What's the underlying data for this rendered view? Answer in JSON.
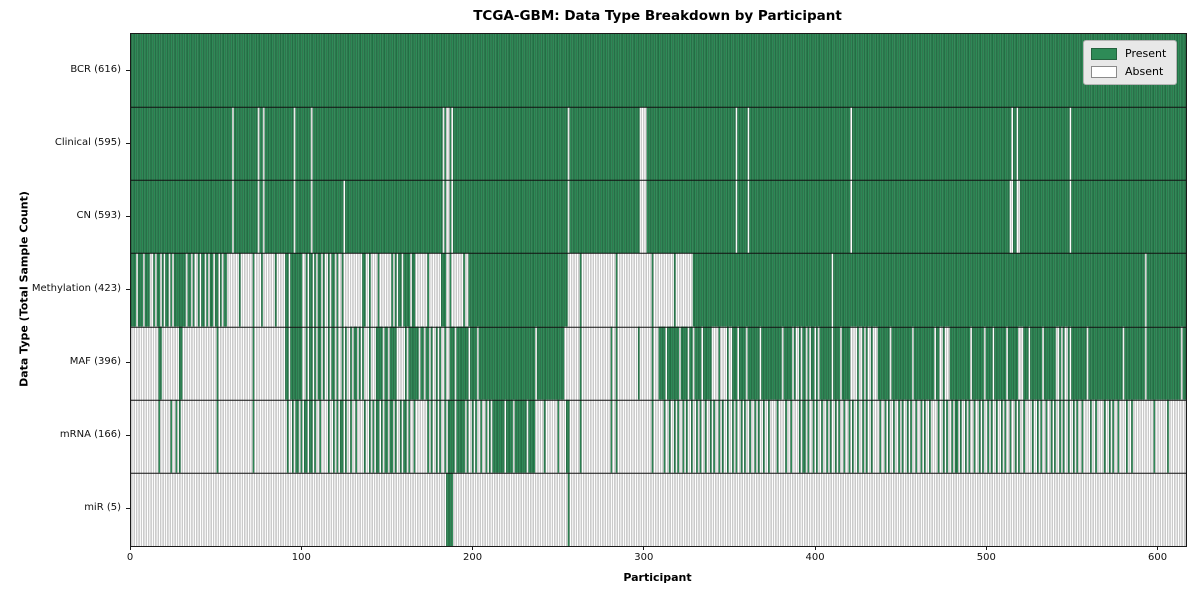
{
  "chart_data": {
    "type": "heatmap",
    "title": "TCGA-GBM: Data Type Breakdown by Participant",
    "xlabel": "Participant",
    "ylabel": "Data Type (Total Sample Count)",
    "x_ticks": [
      0,
      100,
      200,
      300,
      400,
      500,
      600
    ],
    "xlim": [
      0,
      616
    ],
    "n_participants": 616,
    "grid": false,
    "legend_position": "upper right",
    "legend_items": [
      {
        "label": "Present",
        "color": "#2e8b57"
      },
      {
        "label": "Absent",
        "color": "#ffffff"
      }
    ],
    "colors": {
      "present": "#2e8b57",
      "absent": "#ffffff",
      "bar_edge": "rgba(0,0,0,0.42)",
      "row_divider": "#111111",
      "axis": "#1a1a1a"
    },
    "segment_format": "[start_participant, end_participant, fraction_present] estimated from pixels",
    "rows": [
      {
        "label": "BCR (616)",
        "data_type": "BCR",
        "total_samples": 616,
        "segments": [
          [
            0,
            616,
            1
          ]
        ]
      },
      {
        "label": "Clinical (595)",
        "data_type": "Clinical",
        "total_samples": 595,
        "segments": [
          [
            0,
            59,
            1
          ],
          [
            59,
            60,
            0
          ],
          [
            60,
            74,
            1
          ],
          [
            74,
            75,
            0
          ],
          [
            75,
            77,
            1
          ],
          [
            77,
            78,
            0
          ],
          [
            78,
            95,
            1
          ],
          [
            95,
            96,
            0
          ],
          [
            96,
            105,
            1
          ],
          [
            105,
            106,
            0
          ],
          [
            106,
            182,
            1
          ],
          [
            182,
            188,
            0.25
          ],
          [
            188,
            255,
            1
          ],
          [
            255,
            256,
            0
          ],
          [
            256,
            297,
            1
          ],
          [
            297,
            301,
            0.25
          ],
          [
            301,
            353,
            1
          ],
          [
            353,
            354,
            0
          ],
          [
            354,
            360,
            1
          ],
          [
            360,
            361,
            0
          ],
          [
            361,
            420,
            1
          ],
          [
            420,
            421,
            0
          ],
          [
            421,
            514,
            1
          ],
          [
            514,
            515,
            0
          ],
          [
            515,
            517,
            1
          ],
          [
            517,
            518,
            0
          ],
          [
            518,
            548,
            1
          ],
          [
            548,
            549,
            0
          ],
          [
            549,
            616,
            1
          ]
        ]
      },
      {
        "label": "CN (593)",
        "data_type": "CN",
        "total_samples": 593,
        "segments": [
          [
            0,
            59,
            1
          ],
          [
            59,
            60,
            0
          ],
          [
            60,
            74,
            1
          ],
          [
            74,
            75,
            0
          ],
          [
            75,
            77,
            1
          ],
          [
            77,
            78,
            0
          ],
          [
            78,
            95,
            1
          ],
          [
            95,
            96,
            0
          ],
          [
            96,
            105,
            1
          ],
          [
            105,
            106,
            0
          ],
          [
            106,
            124,
            1
          ],
          [
            124,
            125,
            0
          ],
          [
            125,
            182,
            1
          ],
          [
            182,
            188,
            0.25
          ],
          [
            188,
            255,
            1
          ],
          [
            255,
            256,
            0
          ],
          [
            256,
            296,
            1
          ],
          [
            296,
            301,
            0.2
          ],
          [
            301,
            353,
            1
          ],
          [
            353,
            354,
            0
          ],
          [
            354,
            360,
            1
          ],
          [
            360,
            361,
            0
          ],
          [
            361,
            420,
            1
          ],
          [
            420,
            421,
            0
          ],
          [
            421,
            513,
            1
          ],
          [
            513,
            515,
            0
          ],
          [
            515,
            517,
            1
          ],
          [
            517,
            519,
            0
          ],
          [
            519,
            548,
            1
          ],
          [
            548,
            549,
            0
          ],
          [
            549,
            616,
            1
          ]
        ]
      },
      {
        "label": "Methylation (423)",
        "data_type": "Methylation",
        "total_samples": 423,
        "segments": [
          [
            0,
            3,
            1
          ],
          [
            3,
            4,
            0
          ],
          [
            4,
            7,
            1
          ],
          [
            7,
            8,
            0
          ],
          [
            8,
            11,
            1
          ],
          [
            11,
            25,
            0.5
          ],
          [
            25,
            31,
            1
          ],
          [
            31,
            56,
            0.6
          ],
          [
            56,
            90,
            0.12
          ],
          [
            90,
            101,
            0.92
          ],
          [
            101,
            125,
            0.5
          ],
          [
            125,
            135,
            0.05
          ],
          [
            135,
            137,
            1
          ],
          [
            137,
            154,
            0.15
          ],
          [
            154,
            165,
            0.75
          ],
          [
            165,
            181,
            0.1
          ],
          [
            181,
            184,
            1
          ],
          [
            184,
            197,
            0.15
          ],
          [
            197,
            255,
            0.98
          ],
          [
            255,
            310,
            0.06
          ],
          [
            310,
            328,
            0.12
          ],
          [
            328,
            409,
            1
          ],
          [
            409,
            410,
            0
          ],
          [
            410,
            616,
            0.995
          ]
        ]
      },
      {
        "label": "MAF (396)",
        "data_type": "MAF",
        "total_samples": 396,
        "segments": [
          [
            0,
            17,
            0.06
          ],
          [
            17,
            18,
            1
          ],
          [
            18,
            27,
            0.08
          ],
          [
            27,
            30,
            0.6
          ],
          [
            30,
            56,
            0.05
          ],
          [
            56,
            90,
            0.03
          ],
          [
            90,
            101,
            0.9
          ],
          [
            101,
            125,
            0.5
          ],
          [
            125,
            136,
            0.6
          ],
          [
            136,
            142,
            0.12
          ],
          [
            142,
            156,
            0.8
          ],
          [
            156,
            162,
            0.12
          ],
          [
            162,
            171,
            0.95
          ],
          [
            171,
            187,
            0.45
          ],
          [
            187,
            204,
            0.8
          ],
          [
            204,
            253,
            0.95
          ],
          [
            253,
            280,
            0.08
          ],
          [
            280,
            281,
            1
          ],
          [
            281,
            308,
            0.07
          ],
          [
            308,
            339,
            0.82
          ],
          [
            339,
            351,
            0.25
          ],
          [
            351,
            386,
            0.9
          ],
          [
            386,
            400,
            0.5
          ],
          [
            400,
            419,
            0.85
          ],
          [
            419,
            435,
            0.3
          ],
          [
            435,
            472,
            0.9
          ],
          [
            472,
            477,
            0.15
          ],
          [
            477,
            518,
            0.9
          ],
          [
            518,
            521,
            0.15
          ],
          [
            521,
            540,
            0.85
          ],
          [
            540,
            549,
            0.35
          ],
          [
            549,
            616,
            0.95
          ]
        ]
      },
      {
        "label": "mRNA (166)",
        "data_type": "mRNA",
        "total_samples": 166,
        "segments": [
          [
            0,
            22,
            0.04
          ],
          [
            22,
            29,
            0.5
          ],
          [
            29,
            90,
            0.03
          ],
          [
            90,
            105,
            0.55
          ],
          [
            105,
            121,
            0.3
          ],
          [
            121,
            127,
            0.7
          ],
          [
            127,
            140,
            0.25
          ],
          [
            140,
            154,
            0.6
          ],
          [
            154,
            163,
            0.45
          ],
          [
            163,
            175,
            0.1
          ],
          [
            175,
            187,
            0.5
          ],
          [
            187,
            195,
            0.9
          ],
          [
            195,
            210,
            0.4
          ],
          [
            210,
            236,
            0.8
          ],
          [
            236,
            255,
            0.15
          ],
          [
            255,
            256,
            1
          ],
          [
            256,
            280,
            0.05
          ],
          [
            280,
            281,
            1
          ],
          [
            281,
            310,
            0.06
          ],
          [
            310,
            368,
            0.4
          ],
          [
            368,
            390,
            0.25
          ],
          [
            390,
            430,
            0.4
          ],
          [
            430,
            475,
            0.35
          ],
          [
            475,
            520,
            0.4
          ],
          [
            520,
            555,
            0.35
          ],
          [
            555,
            585,
            0.3
          ],
          [
            585,
            616,
            0.12
          ]
        ]
      },
      {
        "label": "miR (5)",
        "data_type": "miR",
        "total_samples": 5,
        "segments": [
          [
            0,
            184,
            0
          ],
          [
            184,
            188,
            1
          ],
          [
            188,
            255,
            0
          ],
          [
            255,
            256,
            1
          ],
          [
            256,
            616,
            0
          ]
        ]
      }
    ]
  }
}
